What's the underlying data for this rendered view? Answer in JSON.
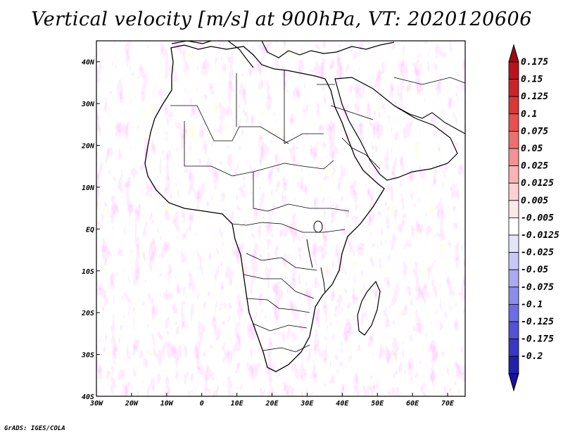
{
  "title": "Vertical velocity [m/s] at 900hPa, VT: 2020120606",
  "footer": "GrADS: IGES/COLA",
  "map": {
    "lon_labels": [
      "30W",
      "20W",
      "10W",
      "0",
      "10E",
      "20E",
      "30E",
      "40E",
      "50E",
      "60E",
      "70E"
    ],
    "lat_labels": [
      "40N",
      "30N",
      "20N",
      "10N",
      "EQ",
      "10S",
      "20S",
      "30S",
      "40S"
    ],
    "lon_range": [
      -30,
      75
    ],
    "lat_range": [
      -40,
      45
    ],
    "variable": "vertical velocity",
    "units": "m/s",
    "level": "900hPa"
  },
  "colorbar": {
    "levels": [
      {
        "label": "0.175",
        "color": "#b8141c"
      },
      {
        "label": "0.15",
        "color": "#c8252a"
      },
      {
        "label": "0.125",
        "color": "#d83838"
      },
      {
        "label": "0.1",
        "color": "#e45252"
      },
      {
        "label": "0.075",
        "color": "#ec7070"
      },
      {
        "label": "0.05",
        "color": "#f29292"
      },
      {
        "label": "0.025",
        "color": "#f7b4b4"
      },
      {
        "label": "0.0125",
        "color": "#fbd2d2"
      },
      {
        "label": "0.005",
        "color": "#fde9e9"
      },
      {
        "label": "-0.005",
        "color": "#ffffff"
      },
      {
        "label": "-0.0125",
        "color": "#e4e4fd"
      },
      {
        "label": "-0.025",
        "color": "#c8c8f8"
      },
      {
        "label": "-0.05",
        "color": "#aaaaf2"
      },
      {
        "label": "-0.075",
        "color": "#8c8cea"
      },
      {
        "label": "-0.1",
        "color": "#6e6ee0"
      },
      {
        "label": "-0.125",
        "color": "#5252d2"
      },
      {
        "label": "-0.175",
        "color": "#3838c2"
      },
      {
        "label": "-0.2",
        "color": "#2020aa"
      }
    ],
    "top_arrow_color": "#a00a14",
    "bottom_arrow_color": "#1c10a0"
  }
}
